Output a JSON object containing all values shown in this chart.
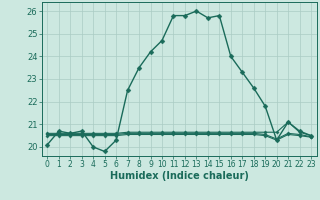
{
  "xlabel": "Humidex (Indice chaleur)",
  "background_color": "#cce8e0",
  "grid_color": "#aaccc4",
  "line_color": "#1a6b5a",
  "x": [
    0,
    1,
    2,
    3,
    4,
    5,
    6,
    7,
    8,
    9,
    10,
    11,
    12,
    13,
    14,
    15,
    16,
    17,
    18,
    19,
    20,
    21,
    22,
    23
  ],
  "y_main": [
    20.1,
    20.7,
    20.6,
    20.7,
    20.0,
    19.8,
    20.3,
    22.5,
    23.5,
    24.2,
    24.7,
    25.8,
    25.8,
    26.0,
    25.7,
    25.8,
    24.0,
    23.3,
    22.6,
    21.8,
    20.3,
    21.1,
    20.7,
    20.5
  ],
  "y_flat1": [
    20.6,
    20.6,
    20.6,
    20.6,
    20.6,
    20.6,
    20.6,
    20.65,
    20.65,
    20.65,
    20.65,
    20.65,
    20.65,
    20.65,
    20.65,
    20.65,
    20.65,
    20.65,
    20.65,
    20.65,
    20.65,
    21.1,
    20.65,
    20.5
  ],
  "y_flat2": [
    20.55,
    20.55,
    20.55,
    20.55,
    20.55,
    20.55,
    20.55,
    20.6,
    20.6,
    20.6,
    20.6,
    20.6,
    20.6,
    20.6,
    20.6,
    20.6,
    20.6,
    20.6,
    20.6,
    20.55,
    20.35,
    20.6,
    20.55,
    20.45
  ],
  "y_flat3": [
    20.5,
    20.5,
    20.5,
    20.5,
    20.5,
    20.5,
    20.5,
    20.55,
    20.55,
    20.55,
    20.55,
    20.55,
    20.55,
    20.55,
    20.55,
    20.55,
    20.55,
    20.55,
    20.55,
    20.5,
    20.3,
    20.55,
    20.5,
    20.43
  ],
  "ylim": [
    19.6,
    26.4
  ],
  "yticks": [
    20,
    21,
    22,
    23,
    24,
    25,
    26
  ],
  "xticks": [
    0,
    1,
    2,
    3,
    4,
    5,
    6,
    7,
    8,
    9,
    10,
    11,
    12,
    13,
    14,
    15,
    16,
    17,
    18,
    19,
    20,
    21,
    22,
    23
  ],
  "markersize": 2.5,
  "linewidth": 1.0
}
